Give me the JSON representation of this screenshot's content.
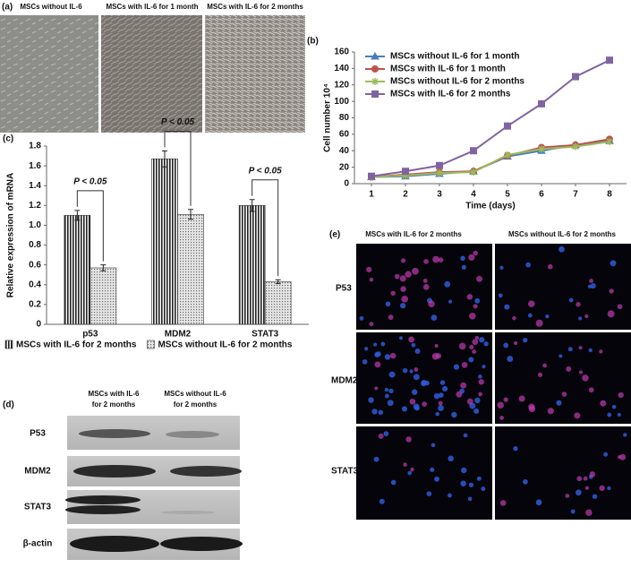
{
  "panels": {
    "a": {
      "label": "(a)",
      "captions": [
        "MSCs without IL-6",
        "MSCs with IL-6 for 1 month",
        "MSCs with IL-6 for 2 months"
      ]
    },
    "b": {
      "label": "(b)"
    },
    "c": {
      "label": "(c)"
    },
    "d": {
      "label": "(d)",
      "columns": [
        [
          "MSCs with IL-6",
          "for 2 months"
        ],
        [
          "MSCs without IL-6",
          "for 2 months"
        ]
      ],
      "rows": [
        "P53",
        "MDM2",
        "STAT3",
        "β-actin"
      ]
    },
    "e": {
      "label": "(e)",
      "columns": [
        "MSCs with IL-6 for 2 months",
        "MSCs without IL-6 for 2 months"
      ],
      "rows": [
        "P53",
        "MDM2",
        "STAT3"
      ]
    }
  },
  "chart_data": [
    {
      "type": "line",
      "x_label": "Time (days)",
      "y_label": "Cell number 10⁴",
      "x": [
        1,
        2,
        3,
        4,
        5,
        6,
        7,
        8
      ],
      "xlim": [
        0.5,
        8.5
      ],
      "xticks": [
        1,
        2,
        3,
        4,
        5,
        6,
        7,
        8
      ],
      "ylim": [
        0,
        160
      ],
      "yticks": [
        0,
        20,
        40,
        60,
        80,
        100,
        120,
        140,
        160
      ],
      "legend": "top-left",
      "series": [
        {
          "name": "MSCs without IL-6 for 1 month",
          "color": "#4a7ebb",
          "marker": "triangle",
          "values": [
            8,
            9,
            12,
            15,
            33,
            40,
            47,
            52
          ]
        },
        {
          "name": "MSCs with IL-6 for 1 month",
          "color": "#c0504d",
          "marker": "circle",
          "values": [
            8,
            11,
            14,
            15,
            34,
            44,
            47,
            54
          ]
        },
        {
          "name": "MSCs without IL-6 for 2 months",
          "color": "#9bbb59",
          "marker": "cross",
          "values": [
            8,
            10,
            13,
            14,
            35,
            42,
            45,
            51
          ]
        },
        {
          "name": "MSCs with IL-6 for 2 months",
          "color": "#8064a2",
          "marker": "square",
          "values": [
            9,
            15,
            22,
            40,
            70,
            97,
            130,
            150
          ]
        }
      ]
    },
    {
      "type": "bar",
      "y_label": "Relative expression of mRNA",
      "categories": [
        "p53",
        "MDM2",
        "STAT3"
      ],
      "ylim": [
        0,
        1.8
      ],
      "yticks": [
        0,
        0.2,
        0.4,
        0.6,
        0.8,
        {
          "value": 1,
          "label": "1.0"
        },
        1.2,
        1.4,
        1.6,
        1.8
      ],
      "legend": "bottom",
      "series": [
        {
          "name": "MSCs with IL-6 for 2 months",
          "pattern": "stripes",
          "values": [
            1.1,
            1.67,
            1.2
          ],
          "errors": [
            0.05,
            0.08,
            0.06
          ]
        },
        {
          "name": "MSCs without IL-6 for 2 months",
          "pattern": "dots",
          "values": [
            0.57,
            1.11,
            0.43
          ],
          "errors": [
            0.03,
            0.05,
            0.02
          ]
        }
      ],
      "annotations": [
        "P < 0.05",
        "P < 0.05",
        "P < 0.05"
      ]
    }
  ]
}
